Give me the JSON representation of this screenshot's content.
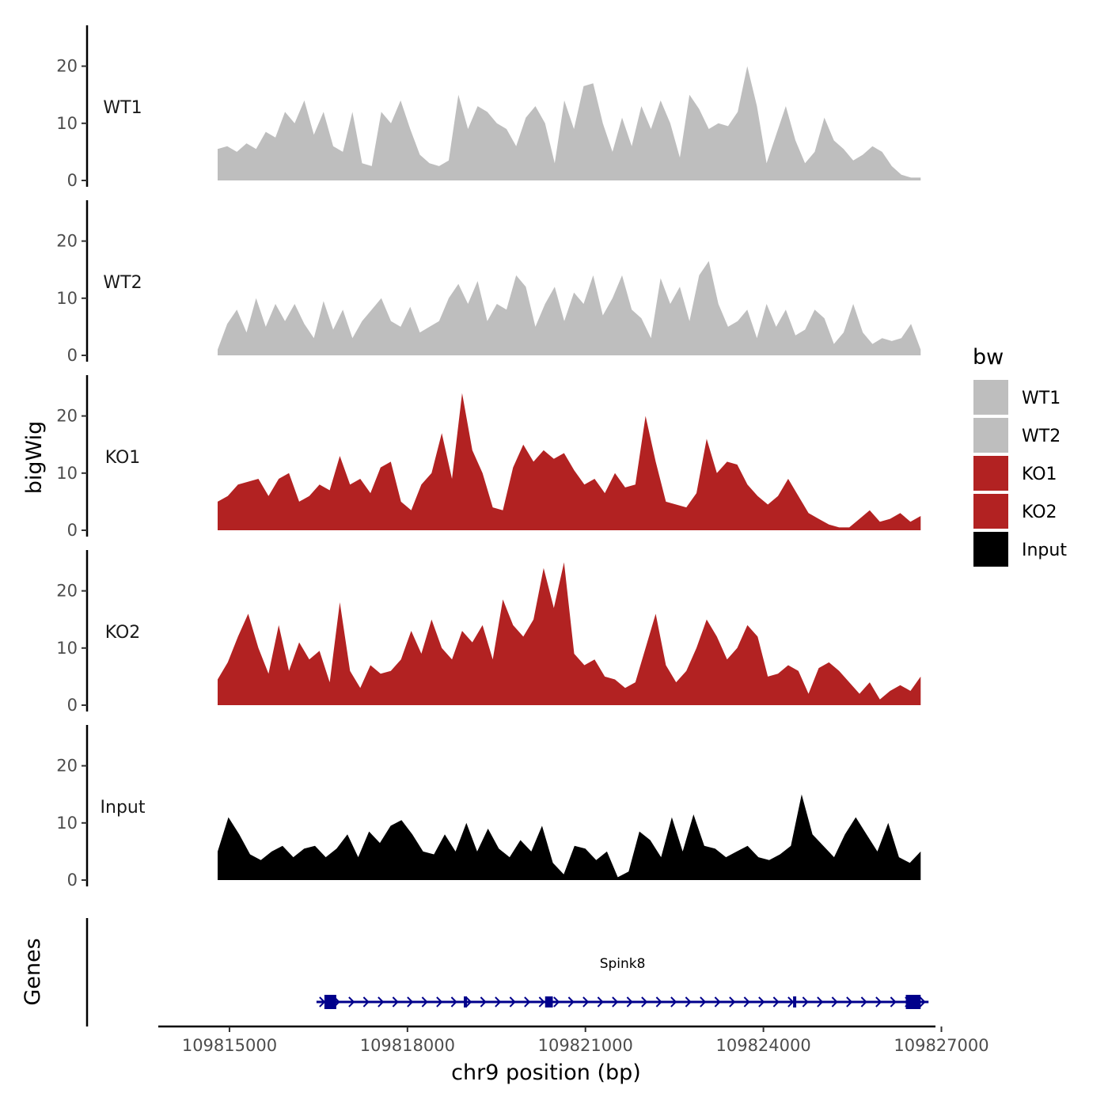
{
  "chart_data": {
    "type": "area",
    "ylabel": "bigWig",
    "xlabel": "chr9 position (bp)",
    "x_range": [
      109814800,
      109826650
    ],
    "xlim": [
      109813800,
      109826900
    ],
    "ylim": [
      0,
      27
    ],
    "y_ticks": [
      0,
      10,
      20
    ],
    "y_tick_labels": [
      "0",
      "10",
      "20"
    ],
    "x_ticks": [
      109815000,
      109818000,
      109821000,
      109824000,
      109827000
    ],
    "x_tick_labels": [
      "109815000",
      "109818000",
      "109821000",
      "109824000",
      "109827000"
    ],
    "series": [
      {
        "name": "WT1",
        "color": "#bebebe",
        "values": [
          5.5,
          6.0,
          5.0,
          6.5,
          5.5,
          8.5,
          7.5,
          12.0,
          10.0,
          14.0,
          8.0,
          12.0,
          6.0,
          5.0,
          12.0,
          3.0,
          2.5,
          12.0,
          10.0,
          14.0,
          9.0,
          4.5,
          3.0,
          2.5,
          3.5,
          15.0,
          9.0,
          13.0,
          12.0,
          10.0,
          9.0,
          6.0,
          11.0,
          13.0,
          10.0,
          3.0,
          14.0,
          9.0,
          16.5,
          17.0,
          10.0,
          5.0,
          11.0,
          6.0,
          13.0,
          9.0,
          14.0,
          10.0,
          4.0,
          15.0,
          12.5,
          9.0,
          10.0,
          9.5,
          12.0,
          20.0,
          13.0,
          3.0,
          8.0,
          13.0,
          7.0,
          3.0,
          5.0,
          11.0,
          7.0,
          5.5,
          3.5,
          4.5,
          6.0,
          5.0,
          2.5,
          1.0,
          0.5,
          0.5
        ]
      },
      {
        "name": "WT2",
        "color": "#bebebe",
        "values": [
          1.0,
          5.5,
          8.0,
          4.0,
          10.0,
          5.0,
          9.0,
          6.0,
          9.0,
          5.5,
          3.0,
          9.5,
          4.5,
          8.0,
          3.0,
          6.0,
          8.0,
          10.0,
          6.0,
          5.0,
          8.5,
          4.0,
          5.0,
          6.0,
          10.0,
          12.5,
          9.0,
          13.0,
          6.0,
          9.0,
          8.0,
          14.0,
          12.0,
          5.0,
          9.0,
          12.0,
          6.0,
          11.0,
          9.0,
          14.0,
          7.0,
          10.0,
          14.0,
          8.0,
          6.5,
          3.0,
          13.5,
          9.0,
          12.0,
          6.0,
          14.0,
          16.5,
          9.0,
          5.0,
          6.0,
          8.0,
          3.0,
          9.0,
          5.0,
          8.0,
          3.5,
          4.5,
          8.0,
          6.5,
          2.0,
          4.0,
          9.0,
          4.0,
          2.0,
          3.0,
          2.5,
          3.0,
          5.5,
          1.0
        ]
      },
      {
        "name": "KO1",
        "color": "#b22222",
        "values": [
          5.0,
          6.0,
          8.0,
          8.5,
          9.0,
          6.0,
          9.0,
          10.0,
          5.0,
          6.0,
          8.0,
          7.0,
          13.0,
          8.0,
          9.0,
          6.5,
          11.0,
          12.0,
          5.0,
          3.5,
          8.0,
          10.0,
          17.0,
          9.0,
          24.0,
          14.0,
          10.0,
          4.0,
          3.5,
          11.0,
          15.0,
          12.0,
          14.0,
          12.5,
          13.5,
          10.5,
          8.0,
          9.0,
          6.5,
          10.0,
          7.5,
          8.0,
          20.0,
          12.0,
          5.0,
          4.5,
          4.0,
          6.5,
          16.0,
          10.0,
          12.0,
          11.5,
          8.0,
          6.0,
          4.5,
          6.0,
          9.0,
          6.0,
          3.0,
          2.0,
          1.0,
          0.5,
          0.5,
          2.0,
          3.5,
          1.5,
          2.0,
          3.0,
          1.5,
          2.5
        ]
      },
      {
        "name": "KO2",
        "color": "#b22222",
        "values": [
          4.5,
          7.5,
          12.0,
          16.0,
          10.0,
          5.5,
          14.0,
          6.0,
          11.0,
          8.0,
          9.5,
          4.0,
          18.0,
          6.0,
          3.0,
          7.0,
          5.5,
          6.0,
          8.0,
          13.0,
          9.0,
          15.0,
          10.0,
          8.0,
          13.0,
          11.0,
          14.0,
          8.0,
          18.5,
          14.0,
          12.0,
          15.0,
          24.0,
          17.0,
          25.0,
          9.0,
          7.0,
          8.0,
          5.0,
          4.5,
          3.0,
          4.0,
          10.0,
          16.0,
          7.0,
          4.0,
          6.0,
          10.0,
          15.0,
          12.0,
          8.0,
          10.0,
          14.0,
          12.0,
          5.0,
          5.5,
          7.0,
          6.0,
          2.0,
          6.5,
          7.5,
          6.0,
          4.0,
          2.0,
          4.0,
          1.0,
          2.5,
          3.5,
          2.5,
          5.0
        ]
      },
      {
        "name": "Input",
        "color": "#000000",
        "values": [
          5.0,
          11.0,
          8.0,
          4.5,
          3.5,
          5.0,
          6.0,
          4.0,
          5.5,
          6.0,
          4.0,
          5.5,
          8.0,
          4.0,
          8.5,
          6.5,
          9.5,
          10.5,
          8.0,
          5.0,
          4.5,
          8.0,
          5.0,
          10.0,
          5.0,
          9.0,
          5.5,
          4.0,
          7.0,
          5.0,
          9.5,
          3.0,
          1.0,
          6.0,
          5.5,
          3.5,
          5.0,
          0.5,
          1.5,
          8.5,
          7.0,
          4.0,
          11.0,
          5.0,
          11.5,
          6.0,
          5.5,
          4.0,
          5.0,
          6.0,
          4.0,
          3.5,
          4.5,
          6.0,
          15.0,
          8.0,
          6.0,
          4.0,
          8.0,
          11.0,
          8.0,
          5.0,
          10.0,
          4.0,
          3.0,
          5.0
        ]
      }
    ],
    "legend": {
      "title": "bw",
      "position": "right",
      "entries": [
        {
          "label": "WT1",
          "color": "#bebebe"
        },
        {
          "label": "WT2",
          "color": "#bebebe"
        },
        {
          "label": "KO1",
          "color": "#b22222"
        },
        {
          "label": "KO2",
          "color": "#b22222"
        },
        {
          "label": "Input",
          "color": "#000000"
        }
      ]
    },
    "genes_track": {
      "label": "Genes",
      "color": "#00008b",
      "genes": [
        {
          "name": "Spink8",
          "strand": "+",
          "start": 109816600,
          "end": 109826650,
          "exons": [
            [
              109816600,
              109816800
            ],
            [
              109818950,
              109819000
            ],
            [
              109820320,
              109820450
            ],
            [
              109824500,
              109824550
            ],
            [
              109826400,
              109826650
            ]
          ]
        }
      ]
    }
  }
}
